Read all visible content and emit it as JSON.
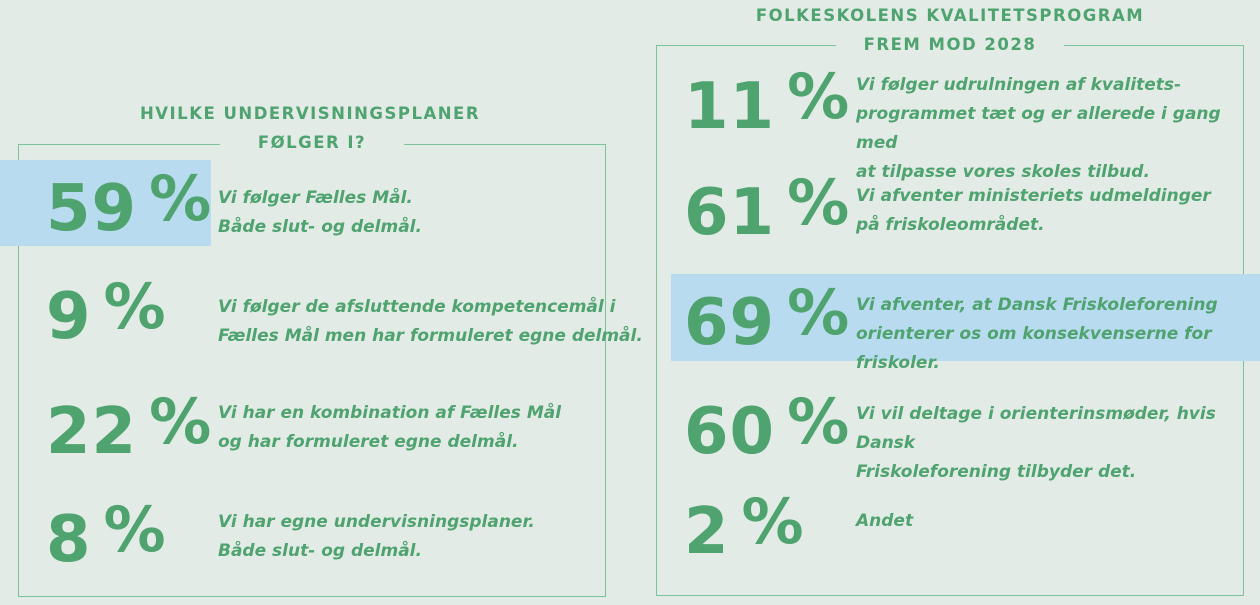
{
  "left": {
    "heading_line1": "HVILKE UNDERVISNINGSPLANER",
    "heading_line2": "FØLGER I?",
    "items": [
      {
        "value": "59",
        "sign": "%",
        "line1": "Vi følger Fælles Mål.",
        "line2": "Både slut- og delmål.",
        "highlighted": true
      },
      {
        "value": "9",
        "sign": "%",
        "line1": "Vi følger de afsluttende kompetencemål i",
        "line2": "Fælles Mål men har formuleret egne delmål.",
        "highlighted": false
      },
      {
        "value": "22",
        "sign": "%",
        "line1": "Vi har en kombination af Fælles Mål",
        "line2": "og har formuleret egne delmål.",
        "highlighted": false
      },
      {
        "value": "8",
        "sign": "%",
        "line1": "Vi har egne undervisningsplaner.",
        "line2": "Både slut- og delmål.",
        "highlighted": false
      }
    ]
  },
  "right": {
    "heading_line1": "FOLKESKOLENS KVALITETSPROGRAM",
    "heading_line2": "FREM  MOD 2028",
    "items": [
      {
        "value": "11",
        "sign": "%",
        "line1": "Vi følger udrulningen af kvalitets-",
        "line2": "programmet tæt og er allerede i gang med",
        "line3": "at tilpasse vores skoles tilbud.",
        "highlighted": false
      },
      {
        "value": "61",
        "sign": "%",
        "line1": "Vi afventer ministeriets udmeldinger",
        "line2": "på friskoleområdet.",
        "highlighted": false
      },
      {
        "value": "69",
        "sign": "%",
        "line1": "Vi afventer, at Dansk Friskoleforening",
        "line2": "orienterer os om konsekvenserne for friskoler.",
        "highlighted": true
      },
      {
        "value": "60",
        "sign": "%",
        "line1": "Vi vil deltage i orienterinsmøder, hvis Dansk",
        "line2": "Friskoleforening tilbyder det.",
        "highlighted": false
      },
      {
        "value": "2",
        "sign": "%",
        "line1": "Andet",
        "highlighted": false
      }
    ]
  },
  "colors": {
    "background": "#e3ebe7",
    "accent_green": "#4fa36f",
    "border_green": "#7cc39a",
    "highlight_blue": "#b9dbef"
  },
  "chart_data": [
    {
      "type": "table",
      "title": "HVILKE UNDERVISNINGSPLANER FØLGER I?",
      "categories": [
        "Vi følger Fælles Mål. Både slut- og delmål.",
        "Vi følger de afsluttende kompetencemål i Fælles Mål men har formuleret egne delmål.",
        "Vi har en kombination af Fælles Mål og har formuleret egne delmål.",
        "Vi har egne undervisningsplaner. Både slut- og delmål."
      ],
      "values": [
        59,
        9,
        22,
        8
      ],
      "unit": "%"
    },
    {
      "type": "table",
      "title": "FOLKESKOLENS KVALITETSPROGRAM FREM  MOD 2028",
      "categories": [
        "Vi følger udrulningen af kvalitets-programmet tæt og er allerede i gang med at tilpasse vores skoles tilbud.",
        "Vi afventer ministeriets udmeldinger på friskoleområdet.",
        "Vi afventer, at Dansk Friskoleforening orienterer os om konsekvenserne for friskoler.",
        "Vi vil deltage i orienterinsmøder, hvis Dansk Friskoleforening tilbyder det.",
        "Andet"
      ],
      "values": [
        11,
        61,
        69,
        60,
        2
      ],
      "unit": "%"
    }
  ]
}
